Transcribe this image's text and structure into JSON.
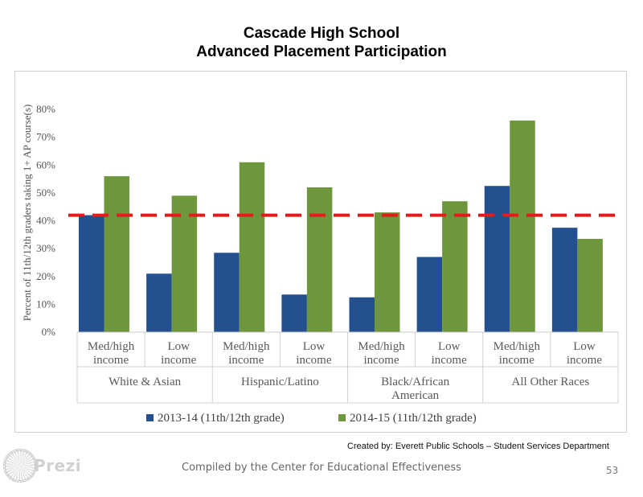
{
  "header": {
    "title_line1": "Cascade High School",
    "title_line2": "Advanced Placement Participation"
  },
  "footer": {
    "credit": "Created by: Everett Public Schools – Student Services Department",
    "compiled": "Compiled by the Center for Educational Effectiveness",
    "page_number": "53",
    "logo_text": "Prezi"
  },
  "chart_data": {
    "type": "bar",
    "title": "",
    "ylabel": "Percent of 11th/12th graders taking 1+ AP course(s)",
    "ylim": [
      0,
      80
    ],
    "yticks": [
      "0%",
      "10%",
      "20%",
      "30%",
      "40%",
      "50%",
      "60%",
      "70%",
      "80%"
    ],
    "grid": false,
    "legend_position": "bottom",
    "categories": [
      [
        "Med/high",
        "income"
      ],
      [
        "Low",
        "income"
      ],
      [
        "Med/high",
        "income"
      ],
      [
        "Low",
        "income"
      ],
      [
        "Med/high",
        "income"
      ],
      [
        "Low",
        "income"
      ],
      [
        "Med/high",
        "income"
      ],
      [
        "Low",
        "income"
      ]
    ],
    "groups": [
      [
        "White & Asian"
      ],
      [
        "Hispanic/Latino"
      ],
      [
        "Black/African",
        "American"
      ],
      [
        "All Other Races"
      ]
    ],
    "series": [
      {
        "name": "2013-14 (11th/12th grade)",
        "color": "#24508f",
        "values": [
          42,
          21,
          28.5,
          13.5,
          12.5,
          27,
          52.5,
          37.5
        ]
      },
      {
        "name": "2014-15 (11th/12th grade)",
        "color": "#6e963b",
        "values": [
          56,
          49,
          61,
          52,
          43,
          47,
          76,
          33.5
        ]
      }
    ],
    "reference_line": {
      "value": 42,
      "color": "#e31b1b",
      "style": "dashed"
    }
  }
}
